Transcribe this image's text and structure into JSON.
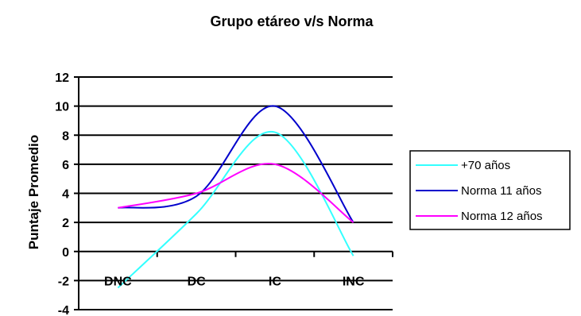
{
  "chart_data": {
    "type": "line",
    "title": "Grupo etáreo v/s Norma",
    "xlabel": "",
    "ylabel": "Puntaje Promedio",
    "categories": [
      "DNC",
      "DC",
      "IC",
      "INC"
    ],
    "ylim": [
      -4,
      12
    ],
    "yticks": [
      -4,
      -2,
      0,
      2,
      4,
      6,
      8,
      10,
      12
    ],
    "grid": true,
    "smooth": true,
    "legend_position": "right",
    "series": [
      {
        "name": "+70 años",
        "color": "#33ffff",
        "values": [
          -2.5,
          2.6,
          8.2,
          -0.3
        ]
      },
      {
        "name": "Norma 11 años",
        "color": "#0000cc",
        "values": [
          3.0,
          3.8,
          10.0,
          2.0
        ]
      },
      {
        "name": "Norma 12 años",
        "color": "#ff00ff",
        "values": [
          3.0,
          4.0,
          6.0,
          2.0
        ]
      }
    ]
  }
}
